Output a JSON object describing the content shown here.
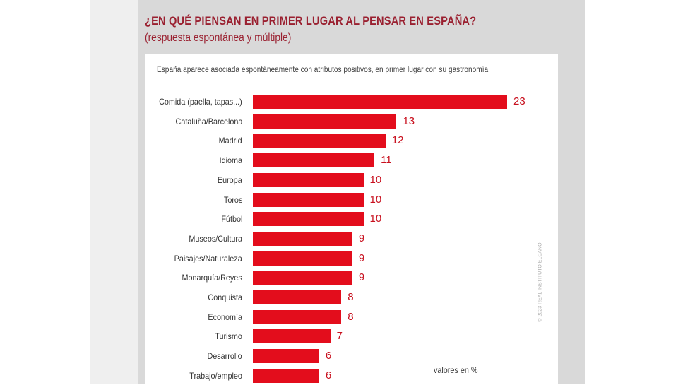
{
  "chart_data": {
    "type": "bar",
    "orientation": "horizontal",
    "title": "¿EN QUÉ PIENSAN EN PRIMER LUGAR AL PENSAR EN ESPAÑA?",
    "subtitle": "(respuesta espontánea y múltiple)",
    "description": "España aparece asociada espontáneamente con atributos positivos, en primer lugar con su gastronomía.",
    "unit_note": "valores en %",
    "copyright": "© 2023 REAL INSTITUTO ELCANO",
    "categories": [
      "Comida (paella, tapas...)",
      "Cataluña/Barcelona",
      "Madrid",
      "Idioma",
      "Europa",
      "Toros",
      "Fútbol",
      "Museos/Cultura",
      "Paisajes/Naturaleza",
      "Monarquía/Reyes",
      "Conquista",
      "Economía",
      "Turismo",
      "Desarrollo",
      "Trabajo/empleo"
    ],
    "values": [
      23,
      13,
      12,
      11,
      10,
      10,
      10,
      9,
      9,
      9,
      8,
      8,
      7,
      6,
      6
    ],
    "bar_color": "#e30d1c",
    "grid": false
  }
}
